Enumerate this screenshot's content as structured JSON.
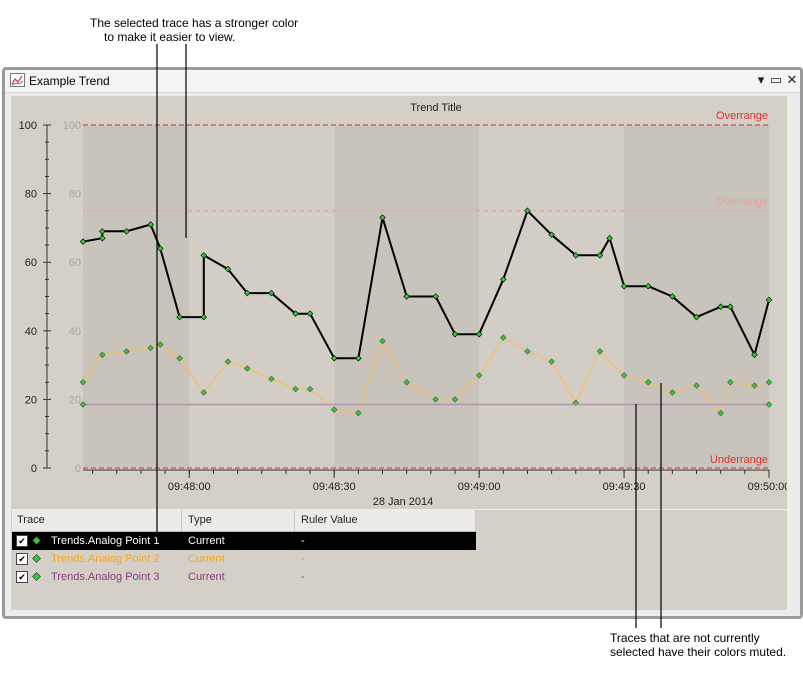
{
  "annotations": {
    "top_line1": "The selected trace has a stronger color",
    "top_line2": "to make it easier to view.",
    "bottom_line1": "Traces that are not currently",
    "bottom_line2": "selected have their colors muted."
  },
  "window": {
    "title": "Example Trend",
    "buttons": {
      "pin": "▾",
      "maximize": "▭",
      "close": "✕"
    }
  },
  "chart_data": {
    "type": "line",
    "title": "Trend Title",
    "date_label": "28 Jan 2014",
    "x_tick_labels": [
      "09:48:00",
      "09:48:30",
      "09:49:00",
      "09:49:30",
      "09:50:00"
    ],
    "y_ticks": [
      0,
      20,
      40,
      60,
      80,
      100
    ],
    "ylim": [
      0,
      100
    ],
    "limits": [
      {
        "label": "Overrange",
        "value": 100,
        "color": "#e03030"
      },
      {
        "label": "Overrange",
        "value": 75,
        "color": "#e8a0a0"
      },
      {
        "label": "Underrange",
        "value": 0,
        "color": "#e03030"
      }
    ],
    "series": [
      {
        "name": "Trends.Analog Point 1",
        "selected": true,
        "color": "#000000",
        "marker_color": "#32c832",
        "x": [
          "09:47:38",
          "09:47:42",
          "09:47:42",
          "09:47:47",
          "09:47:52",
          "09:47:54",
          "09:47:58",
          "09:48:03",
          "09:48:03",
          "09:48:08",
          "09:48:12",
          "09:48:17",
          "09:48:22",
          "09:48:25",
          "09:48:30",
          "09:48:35",
          "09:48:40",
          "09:48:45",
          "09:48:51",
          "09:48:55",
          "09:49:00",
          "09:49:05",
          "09:49:10",
          "09:49:15",
          "09:49:20",
          "09:49:25",
          "09:49:27",
          "09:49:30",
          "09:49:35",
          "09:49:40",
          "09:49:45",
          "09:49:50",
          "09:49:52",
          "09:49:57",
          "09:50:00"
        ],
        "y": [
          66,
          67,
          69,
          69,
          71,
          64,
          44,
          44,
          62,
          58,
          51,
          51,
          45,
          45,
          32,
          32,
          73,
          50,
          50,
          39,
          39,
          55,
          75,
          68,
          62,
          62,
          67,
          53,
          53,
          50,
          44,
          47,
          47,
          33,
          49
        ]
      },
      {
        "name": "Trends.Analog Point 2",
        "selected": false,
        "color": "#f0c070",
        "marker_color": "#32c832",
        "x": [
          "09:47:38",
          "09:47:42",
          "09:47:47",
          "09:47:52",
          "09:47:54",
          "09:47:58",
          "09:48:03",
          "09:48:08",
          "09:48:12",
          "09:48:17",
          "09:48:22",
          "09:48:25",
          "09:48:30",
          "09:48:35",
          "09:48:40",
          "09:48:45",
          "09:48:51",
          "09:48:55",
          "09:49:00",
          "09:49:05",
          "09:49:10",
          "09:49:15",
          "09:49:20",
          "09:49:25",
          "09:49:30",
          "09:49:35",
          "09:49:40",
          "09:49:45",
          "09:49:50",
          "09:49:52",
          "09:49:57",
          "09:50:00"
        ],
        "y": [
          25,
          33,
          34,
          35,
          36,
          32,
          22,
          31,
          29,
          26,
          23,
          23,
          17,
          16,
          37,
          25,
          20,
          20,
          27,
          38,
          34,
          31,
          19,
          34,
          27,
          25,
          22,
          24,
          16,
          25,
          24,
          25
        ]
      },
      {
        "name": "Trends.Analog Point 3",
        "selected": false,
        "color": "#a890a8",
        "marker_color": "#32c832",
        "x": [
          "09:47:38",
          "09:50:00"
        ],
        "y": [
          18.5,
          18.5
        ]
      }
    ]
  },
  "legend": {
    "headers": {
      "trace": "Trace",
      "type": "Type",
      "ruler": "Ruler Value"
    },
    "rows": [
      {
        "name": "Trends.Analog Point 1",
        "type": "Current",
        "ruler": "-",
        "checked": "✔",
        "name_color": "#ffffff",
        "type_color": "#ffffff",
        "marker_color": "#32c832"
      },
      {
        "name": "Trends.Analog Point 2",
        "type": "Current",
        "ruler": "-",
        "checked": "✔",
        "name_color": "#f5a623",
        "type_color": "#f5a623",
        "marker_color": "#32c832"
      },
      {
        "name": "Trends.Analog Point 3",
        "type": "Current",
        "ruler": "-",
        "checked": "✔",
        "name_color": "#8a3d7a",
        "type_color": "#8a3d7a",
        "marker_color": "#32c832"
      }
    ]
  }
}
